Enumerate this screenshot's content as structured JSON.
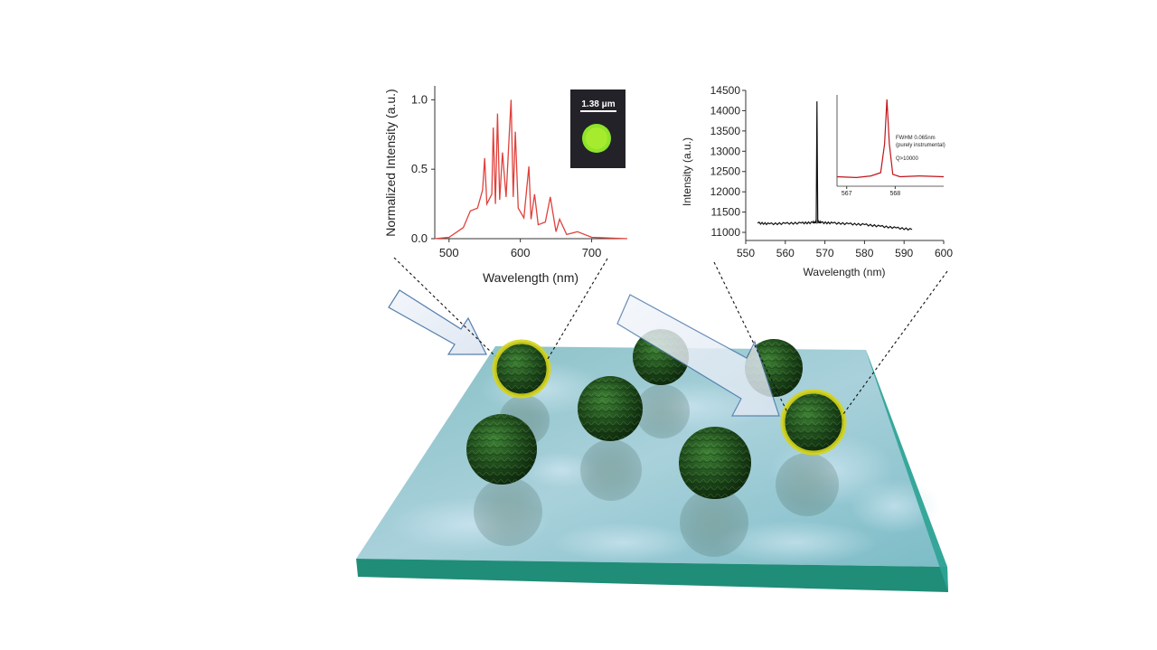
{
  "left_plot": {
    "xlabel": "Wavelength (nm)",
    "ylabel": "Normalized Intensity (a.u.)",
    "x_ticks": [
      "500",
      "600",
      "700"
    ],
    "y_ticks": [
      "0.0",
      "0.5",
      "1.0"
    ],
    "inset_scale_label": "1.38 μm",
    "line_color": "#e0413c"
  },
  "right_plot": {
    "xlabel": "Wavelength (nm)",
    "ylabel": "Intensity (a.u.)",
    "x_ticks": [
      "550",
      "560",
      "570",
      "580",
      "590",
      "600"
    ],
    "y_ticks": [
      "11000",
      "11500",
      "12000",
      "12500",
      "13000",
      "13500",
      "14000",
      "14500"
    ],
    "line_color": "#111111",
    "inset": {
      "x_ticks": [
        "567",
        "568"
      ],
      "annotation_lines": [
        "FWHM 0.065nm",
        "(purely instrumental)"
      ],
      "q_label": "Q>10000",
      "peak_color": "#c0141a"
    }
  },
  "scene": {
    "slab_color": "#2ca394",
    "sphere_color": "#2f6a2a",
    "highlight_ring_color": "#d4d41c"
  },
  "chart_data": [
    {
      "type": "line",
      "title": "",
      "xlabel": "Wavelength (nm)",
      "ylabel": "Normalized Intensity (a.u.)",
      "xlim": [
        480,
        750
      ],
      "ylim": [
        0,
        1.1
      ],
      "series": [
        {
          "x": [
            480,
            500,
            520,
            530,
            540,
            547,
            550,
            553,
            560,
            562,
            565,
            568,
            571,
            575,
            580,
            584,
            587,
            590,
            593,
            597,
            605,
            612,
            615,
            620,
            625,
            635,
            642,
            650,
            655,
            665,
            680,
            700,
            750
          ],
          "y": [
            0.0,
            0.01,
            0.08,
            0.2,
            0.22,
            0.35,
            0.58,
            0.25,
            0.32,
            0.8,
            0.25,
            0.9,
            0.28,
            0.62,
            0.3,
            0.7,
            1.0,
            0.3,
            0.77,
            0.22,
            0.15,
            0.52,
            0.14,
            0.32,
            0.1,
            0.12,
            0.3,
            0.05,
            0.14,
            0.03,
            0.05,
            0.01,
            0.0
          ]
        }
      ]
    },
    {
      "type": "line",
      "title": "",
      "xlabel": "Wavelength (nm)",
      "ylabel": "Intensity (a.u.)",
      "xlim": [
        550,
        600
      ],
      "ylim": [
        10800,
        14500
      ],
      "series": [
        {
          "x": [
            553,
            556,
            560,
            564,
            567,
            567.8,
            568,
            568.2,
            569,
            572,
            576,
            580,
            584,
            588,
            592
          ],
          "y": [
            11230,
            11210,
            11220,
            11230,
            11240,
            11250,
            14230,
            11260,
            11240,
            11230,
            11210,
            11190,
            11150,
            11110,
            11070
          ]
        }
      ]
    },
    {
      "type": "line",
      "title": "",
      "xlabel": "",
      "ylabel": "",
      "xlim": [
        566.8,
        569
      ],
      "series": [
        {
          "x": [
            566.8,
            567.2,
            567.5,
            567.7,
            567.78,
            567.83,
            567.88,
            567.95,
            568.1,
            568.5,
            569
          ],
          "y": [
            0.05,
            0.04,
            0.06,
            0.1,
            0.45,
            1.0,
            0.45,
            0.08,
            0.05,
            0.06,
            0.05
          ]
        }
      ]
    }
  ]
}
